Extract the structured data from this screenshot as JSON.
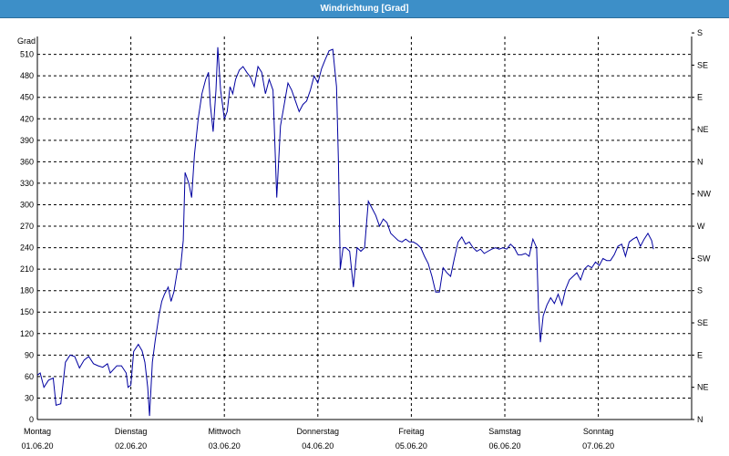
{
  "title": "Windrichtung [Grad]",
  "chart_data": {
    "type": "line",
    "title": "Windrichtung [Grad]",
    "ylabel": "Grad",
    "ylim": [
      0,
      535
    ],
    "grid": true,
    "left_ticks": [
      0,
      30,
      60,
      90,
      120,
      150,
      180,
      210,
      240,
      270,
      300,
      330,
      360,
      390,
      420,
      450,
      480,
      510
    ],
    "right_ticks": [
      {
        "value": 0,
        "label": "N"
      },
      {
        "value": 45,
        "label": "NE"
      },
      {
        "value": 90,
        "label": "E"
      },
      {
        "value": 135,
        "label": "SE"
      },
      {
        "value": 180,
        "label": "S"
      },
      {
        "value": 225,
        "label": "SW"
      },
      {
        "value": 270,
        "label": "W"
      },
      {
        "value": 315,
        "label": "NW"
      },
      {
        "value": 360,
        "label": "N"
      },
      {
        "value": 405,
        "label": "NE"
      },
      {
        "value": 450,
        "label": "E"
      },
      {
        "value": 495,
        "label": "SE"
      },
      {
        "value": 540,
        "label": "S"
      }
    ],
    "x_ticks": [
      {
        "day": "Montag",
        "date": "01.06.20"
      },
      {
        "day": "Dienstag",
        "date": "02.06.20"
      },
      {
        "day": "Mittwoch",
        "date": "03.06.20"
      },
      {
        "day": "Donnerstag",
        "date": "04.06.20"
      },
      {
        "day": "Freitag",
        "date": "05.06.20"
      },
      {
        "day": "Samstag",
        "date": "06.06.20"
      },
      {
        "day": "Sonntag",
        "date": "07.06.20"
      }
    ],
    "x_range_days": [
      0,
      7.2
    ],
    "series": [
      {
        "color": "#0000a0",
        "points": [
          [
            0.0,
            62
          ],
          [
            0.03,
            65
          ],
          [
            0.07,
            45
          ],
          [
            0.12,
            55
          ],
          [
            0.17,
            58
          ],
          [
            0.2,
            20
          ],
          [
            0.25,
            22
          ],
          [
            0.3,
            80
          ],
          [
            0.35,
            90
          ],
          [
            0.4,
            88
          ],
          [
            0.45,
            72
          ],
          [
            0.5,
            83
          ],
          [
            0.55,
            88
          ],
          [
            0.6,
            78
          ],
          [
            0.65,
            75
          ],
          [
            0.7,
            73
          ],
          [
            0.75,
            78
          ],
          [
            0.78,
            65
          ],
          [
            0.85,
            75
          ],
          [
            0.9,
            75
          ],
          [
            0.95,
            65
          ],
          [
            0.97,
            45
          ],
          [
            1.0,
            48
          ],
          [
            1.03,
            95
          ],
          [
            1.08,
            105
          ],
          [
            1.12,
            96
          ],
          [
            1.15,
            80
          ],
          [
            1.18,
            45
          ],
          [
            1.2,
            5
          ],
          [
            1.23,
            80
          ],
          [
            1.26,
            110
          ],
          [
            1.3,
            145
          ],
          [
            1.33,
            165
          ],
          [
            1.36,
            175
          ],
          [
            1.4,
            185
          ],
          [
            1.43,
            165
          ],
          [
            1.46,
            178
          ],
          [
            1.5,
            210
          ],
          [
            1.53,
            210
          ],
          [
            1.56,
            250
          ],
          [
            1.58,
            345
          ],
          [
            1.62,
            330
          ],
          [
            1.65,
            310
          ],
          [
            1.68,
            370
          ],
          [
            1.72,
            420
          ],
          [
            1.76,
            455
          ],
          [
            1.8,
            475
          ],
          [
            1.83,
            485
          ],
          [
            1.85,
            440
          ],
          [
            1.88,
            402
          ],
          [
            1.91,
            460
          ],
          [
            1.93,
            520
          ],
          [
            1.96,
            460
          ],
          [
            2.0,
            420
          ],
          [
            2.03,
            430
          ],
          [
            2.06,
            465
          ],
          [
            2.09,
            455
          ],
          [
            2.12,
            475
          ],
          [
            2.16,
            488
          ],
          [
            2.2,
            493
          ],
          [
            2.24,
            485
          ],
          [
            2.28,
            478
          ],
          [
            2.32,
            465
          ],
          [
            2.36,
            493
          ],
          [
            2.4,
            485
          ],
          [
            2.44,
            455
          ],
          [
            2.48,
            475
          ],
          [
            2.52,
            460
          ],
          [
            2.56,
            310
          ],
          [
            2.6,
            410
          ],
          [
            2.64,
            440
          ],
          [
            2.68,
            470
          ],
          [
            2.72,
            460
          ],
          [
            2.76,
            445
          ],
          [
            2.8,
            430
          ],
          [
            2.84,
            440
          ],
          [
            2.88,
            445
          ],
          [
            2.92,
            460
          ],
          [
            2.96,
            480
          ],
          [
            3.0,
            470
          ],
          [
            3.04,
            490
          ],
          [
            3.08,
            503
          ],
          [
            3.12,
            515
          ],
          [
            3.16,
            517
          ],
          [
            3.2,
            465
          ],
          [
            3.22,
            360
          ],
          [
            3.24,
            210
          ],
          [
            3.27,
            240
          ],
          [
            3.3,
            240
          ],
          [
            3.34,
            235
          ],
          [
            3.38,
            185
          ],
          [
            3.42,
            240
          ],
          [
            3.46,
            235
          ],
          [
            3.5,
            240
          ],
          [
            3.54,
            305
          ],
          [
            3.58,
            295
          ],
          [
            3.62,
            285
          ],
          [
            3.66,
            270
          ],
          [
            3.7,
            280
          ],
          [
            3.74,
            275
          ],
          [
            3.78,
            260
          ],
          [
            3.82,
            255
          ],
          [
            3.86,
            250
          ],
          [
            3.9,
            248
          ],
          [
            3.94,
            252
          ],
          [
            3.98,
            248
          ],
          [
            4.02,
            248
          ],
          [
            4.06,
            245
          ],
          [
            4.1,
            240
          ],
          [
            4.14,
            228
          ],
          [
            4.18,
            218
          ],
          [
            4.22,
            200
          ],
          [
            4.26,
            178
          ],
          [
            4.3,
            178
          ],
          [
            4.34,
            212
          ],
          [
            4.38,
            205
          ],
          [
            4.42,
            200
          ],
          [
            4.46,
            225
          ],
          [
            4.5,
            248
          ],
          [
            4.54,
            255
          ],
          [
            4.58,
            245
          ],
          [
            4.62,
            248
          ],
          [
            4.66,
            240
          ],
          [
            4.7,
            235
          ],
          [
            4.74,
            238
          ],
          [
            4.78,
            232
          ],
          [
            4.82,
            235
          ],
          [
            4.86,
            238
          ],
          [
            4.9,
            240
          ],
          [
            4.94,
            238
          ],
          [
            4.98,
            240
          ],
          [
            5.02,
            238
          ],
          [
            5.06,
            245
          ],
          [
            5.1,
            240
          ],
          [
            5.14,
            230
          ],
          [
            5.18,
            230
          ],
          [
            5.22,
            232
          ],
          [
            5.26,
            228
          ],
          [
            5.3,
            252
          ],
          [
            5.34,
            240
          ],
          [
            5.36,
            155
          ],
          [
            5.38,
            108
          ],
          [
            5.41,
            145
          ],
          [
            5.45,
            160
          ],
          [
            5.49,
            170
          ],
          [
            5.53,
            162
          ],
          [
            5.57,
            175
          ],
          [
            5.61,
            160
          ],
          [
            5.65,
            182
          ],
          [
            5.69,
            195
          ],
          [
            5.73,
            200
          ],
          [
            5.77,
            205
          ],
          [
            5.81,
            195
          ],
          [
            5.85,
            210
          ],
          [
            5.89,
            215
          ],
          [
            5.93,
            212
          ],
          [
            5.97,
            220
          ],
          [
            6.01,
            215
          ],
          [
            6.05,
            225
          ],
          [
            6.09,
            222
          ],
          [
            6.13,
            222
          ],
          [
            6.17,
            230
          ],
          [
            6.21,
            242
          ],
          [
            6.25,
            245
          ],
          [
            6.29,
            228
          ],
          [
            6.33,
            248
          ],
          [
            6.37,
            252
          ],
          [
            6.41,
            255
          ],
          [
            6.45,
            242
          ],
          [
            6.49,
            252
          ],
          [
            6.53,
            260
          ],
          [
            6.57,
            250
          ],
          [
            6.59,
            238
          ]
        ]
      }
    ]
  }
}
